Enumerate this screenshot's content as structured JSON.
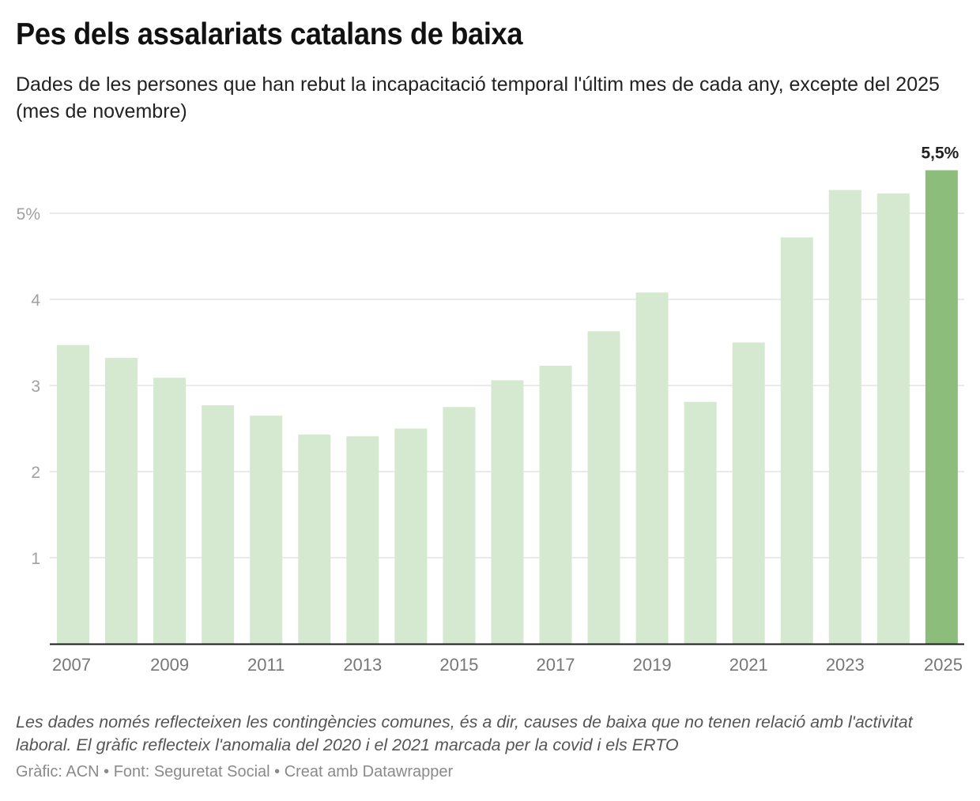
{
  "header": {
    "title": "Pes dels assalariats catalans de baixa",
    "subtitle": "Dades de les persones que han rebut la incapacitació temporal l'últim mes de cada any, excepte del 2025 (mes de novembre)"
  },
  "footer": {
    "note": "Les dades només reflecteixen les contingències comunes, és a dir, causes de baixa que no tenen relació amb l'activitat laboral. El gràfic reflecteix l'anomalia del 2020 i el 2021 marcada per la covid i els ERTO",
    "credits": "Gràfic: ACN • Font: Seguretat Social • Creat amb Datawrapper"
  },
  "colors": {
    "bar": "#d5e8d0",
    "highlight": "#8dbd7a",
    "grid": "#e3e3e3",
    "axis": "#1a1a1a"
  },
  "chart_data": {
    "type": "bar",
    "title": "Pes dels assalariats catalans de baixa",
    "xlabel": "",
    "ylabel": "",
    "categories": [
      "2007",
      "2008",
      "2009",
      "2010",
      "2011",
      "2012",
      "2013",
      "2014",
      "2015",
      "2016",
      "2017",
      "2018",
      "2019",
      "2020",
      "2021",
      "2022",
      "2023",
      "2024",
      "2025"
    ],
    "values": [
      3.47,
      3.32,
      3.09,
      2.77,
      2.65,
      2.43,
      2.41,
      2.5,
      2.75,
      3.06,
      3.23,
      3.63,
      4.08,
      2.81,
      3.5,
      4.72,
      5.27,
      5.23,
      5.5
    ],
    "highlight_index": 18,
    "highlight_label": "5,5%",
    "ylim": [
      0,
      5.5
    ],
    "yticks": [
      {
        "value": 1,
        "label": "1"
      },
      {
        "value": 2,
        "label": "2"
      },
      {
        "value": 3,
        "label": "3"
      },
      {
        "value": 4,
        "label": "4"
      },
      {
        "value": 5,
        "label": "5%"
      }
    ],
    "xtick_labels": [
      "2007",
      "2009",
      "2011",
      "2013",
      "2015",
      "2017",
      "2019",
      "2021",
      "2023",
      "2025"
    ],
    "grid": true,
    "legend": "none"
  }
}
